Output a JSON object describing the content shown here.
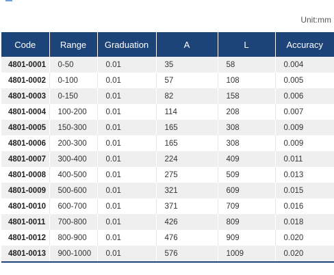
{
  "unit": "Unit:mm",
  "table": {
    "headers": [
      "Code",
      "Range",
      "Graduation",
      "A",
      "L",
      "Accuracy"
    ],
    "rows": [
      [
        "4801-0001",
        "0-50",
        "0.01",
        "35",
        "58",
        "0.004"
      ],
      [
        "4801-0002",
        "0-100",
        "0.01",
        "57",
        "108",
        "0.005"
      ],
      [
        "4801-0003",
        "0-150",
        "0.01",
        "82",
        "158",
        "0.006"
      ],
      [
        "4801-0004",
        "100-200",
        "0.01",
        "114",
        "208",
        "0.007"
      ],
      [
        "4801-0005",
        "150-300",
        "0.01",
        "165",
        "308",
        "0.009"
      ],
      [
        "4801-0006",
        "200-300",
        "0.01",
        "165",
        "308",
        "0.009"
      ],
      [
        "4801-0007",
        "300-400",
        "0.01",
        "224",
        "409",
        "0.011"
      ],
      [
        "4801-0008",
        "400-500",
        "0.01",
        "275",
        "509",
        "0.013"
      ],
      [
        "4801-0009",
        "500-600",
        "0.01",
        "321",
        "609",
        "0.015"
      ],
      [
        "4801-0010",
        "600-700",
        "0.01",
        "371",
        "709",
        "0.016"
      ],
      [
        "4801-0011",
        "700-800",
        "0.01",
        "426",
        "809",
        "0.018"
      ],
      [
        "4801-0012",
        "800-900",
        "0.01",
        "476",
        "909",
        "0.020"
      ],
      [
        "4801-0013",
        "900-1000",
        "0.01",
        "576",
        "1009",
        "0.020"
      ]
    ]
  }
}
